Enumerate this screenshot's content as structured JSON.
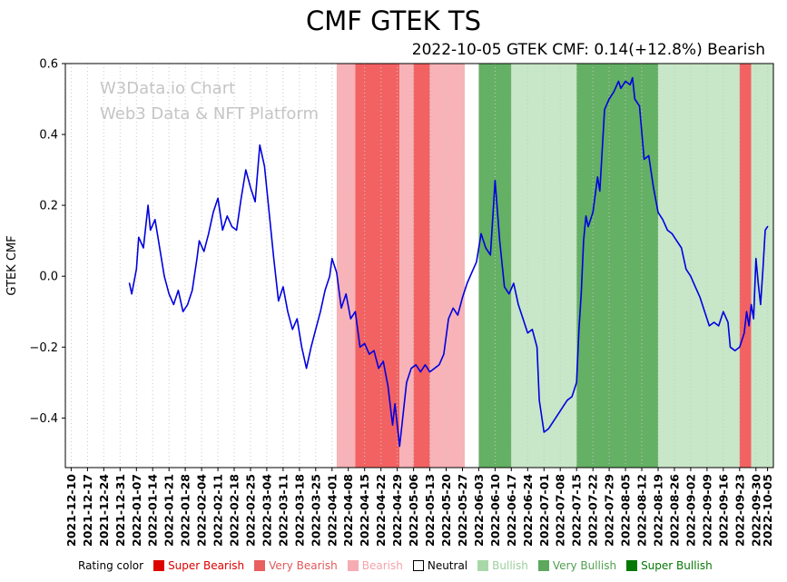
{
  "title": "CMF GTEK TS",
  "subtitle": "2022-10-05 GTEK CMF: 0.14(+12.8%) Bearish",
  "watermark": {
    "line1": "W3Data.io Chart",
    "line2": "Web3 Data & NFT Platform"
  },
  "legend": {
    "title": "Rating color",
    "items": [
      {
        "label": "Super Bearish",
        "color": "#dd0000",
        "border": "#dd0000",
        "text_color": "#dd0000"
      },
      {
        "label": "Very Bearish",
        "color": "#e95f5f",
        "border": "#e95f5f",
        "text_color": "#e05a5a"
      },
      {
        "label": "Bearish",
        "color": "#f5adb3",
        "border": "#f5adb3",
        "text_color": "#f2a3ab"
      },
      {
        "label": "Neutral",
        "color": "#ffffff",
        "border": "#000000",
        "text_color": "#000000"
      },
      {
        "label": "Bullish",
        "color": "#a8d8a8",
        "border": "#a8d8a8",
        "text_color": "#9ccf9c"
      },
      {
        "label": "Very Bullish",
        "color": "#5da85d",
        "border": "#5da85d",
        "text_color": "#4f9f4f"
      },
      {
        "label": "Super Bullish",
        "color": "#067806",
        "border": "#067806",
        "text_color": "#067806"
      }
    ]
  },
  "chart_data": {
    "type": "line",
    "title": "CMF GTEK TS",
    "xlabel": "",
    "ylabel": "GTEK CMF",
    "line_color": "#0000e0",
    "grid_color": "#c9c9c9",
    "grid": "vertical-dotted",
    "legend_position": "bottom",
    "ylim": [
      -0.54,
      0.6
    ],
    "xlim_days": [
      -2.5,
      301.5
    ],
    "yticks": [
      {
        "v": 0.6,
        "label": "0.6"
      },
      {
        "v": 0.4,
        "label": "0.4"
      },
      {
        "v": 0.2,
        "label": "0.2"
      },
      {
        "v": 0.0,
        "label": "0.0"
      },
      {
        "v": -0.2,
        "label": "−0.2"
      },
      {
        "v": -0.4,
        "label": "−0.4"
      }
    ],
    "x_tick_dates": [
      "2021-12-10",
      "2021-12-17",
      "2021-12-24",
      "2021-12-31",
      "2022-01-07",
      "2022-01-14",
      "2022-01-21",
      "2022-01-28",
      "2022-02-04",
      "2022-02-11",
      "2022-02-18",
      "2022-02-25",
      "2022-03-04",
      "2022-03-11",
      "2022-03-18",
      "2022-03-25",
      "2022-04-01",
      "2022-04-08",
      "2022-04-15",
      "2022-04-22",
      "2022-04-29",
      "2022-05-06",
      "2022-05-13",
      "2022-05-20",
      "2022-05-27",
      "2022-06-03",
      "2022-06-10",
      "2022-06-17",
      "2022-06-24",
      "2022-07-01",
      "2022-07-08",
      "2022-07-15",
      "2022-07-22",
      "2022-07-29",
      "2022-08-05",
      "2022-08-12",
      "2022-08-19",
      "2022-08-26",
      "2022-09-02",
      "2022-09-09",
      "2022-09-16",
      "2022-09-23",
      "2022-09-30",
      "2022-10-05"
    ],
    "x_tick_days": [
      0,
      7,
      14,
      21,
      28,
      35,
      42,
      49,
      56,
      63,
      70,
      77,
      84,
      91,
      98,
      105,
      112,
      119,
      126,
      133,
      140,
      147,
      154,
      161,
      168,
      175,
      182,
      189,
      196,
      203,
      210,
      217,
      224,
      231,
      238,
      245,
      252,
      259,
      266,
      273,
      280,
      287,
      294,
      299
    ],
    "rating_colors": {
      "super_bearish": "#ee1111",
      "very_bearish": "#f26262",
      "bearish": "#f7b3b8",
      "neutral": "#ffffff",
      "bullish": "#c8e6c8",
      "very_bullish": "#64b064",
      "super_bullish": "#0c7a0c"
    },
    "bands": [
      {
        "start": -2.5,
        "end": 114,
        "rating": "neutral"
      },
      {
        "start": 114,
        "end": 122,
        "rating": "bearish"
      },
      {
        "start": 122,
        "end": 141,
        "rating": "very_bearish"
      },
      {
        "start": 141,
        "end": 147,
        "rating": "bearish"
      },
      {
        "start": 147,
        "end": 154,
        "rating": "very_bearish"
      },
      {
        "start": 154,
        "end": 169,
        "rating": "bearish"
      },
      {
        "start": 169,
        "end": 175,
        "rating": "neutral"
      },
      {
        "start": 175,
        "end": 189,
        "rating": "very_bullish"
      },
      {
        "start": 189,
        "end": 217,
        "rating": "bullish"
      },
      {
        "start": 217,
        "end": 252,
        "rating": "very_bullish"
      },
      {
        "start": 252,
        "end": 287,
        "rating": "bullish"
      },
      {
        "start": 287,
        "end": 292,
        "rating": "very_bearish"
      },
      {
        "start": 292,
        "end": 301.5,
        "rating": "bullish"
      }
    ],
    "series": [
      {
        "name": "GTEK CMF",
        "points": [
          [
            25,
            -0.02
          ],
          [
            26,
            -0.05
          ],
          [
            28,
            0.02
          ],
          [
            29,
            0.11
          ],
          [
            31,
            0.08
          ],
          [
            33,
            0.2
          ],
          [
            34,
            0.13
          ],
          [
            36,
            0.16
          ],
          [
            38,
            0.08
          ],
          [
            40,
            0.0
          ],
          [
            42,
            -0.05
          ],
          [
            44,
            -0.08
          ],
          [
            46,
            -0.04
          ],
          [
            48,
            -0.1
          ],
          [
            50,
            -0.08
          ],
          [
            52,
            -0.04
          ],
          [
            54,
            0.05
          ],
          [
            55,
            0.1
          ],
          [
            57,
            0.07
          ],
          [
            59,
            0.12
          ],
          [
            61,
            0.18
          ],
          [
            63,
            0.22
          ],
          [
            65,
            0.13
          ],
          [
            67,
            0.17
          ],
          [
            69,
            0.14
          ],
          [
            71,
            0.13
          ],
          [
            73,
            0.22
          ],
          [
            75,
            0.3
          ],
          [
            77,
            0.25
          ],
          [
            79,
            0.21
          ],
          [
            81,
            0.37
          ],
          [
            83,
            0.31
          ],
          [
            85,
            0.18
          ],
          [
            87,
            0.05
          ],
          [
            89,
            -0.07
          ],
          [
            91,
            -0.03
          ],
          [
            93,
            -0.1
          ],
          [
            95,
            -0.15
          ],
          [
            97,
            -0.12
          ],
          [
            99,
            -0.2
          ],
          [
            101,
            -0.26
          ],
          [
            103,
            -0.2
          ],
          [
            105,
            -0.15
          ],
          [
            107,
            -0.1
          ],
          [
            109,
            -0.04
          ],
          [
            111,
            0.0
          ],
          [
            112,
            0.05
          ],
          [
            114,
            0.01
          ],
          [
            116,
            -0.09
          ],
          [
            118,
            -0.05
          ],
          [
            120,
            -0.12
          ],
          [
            122,
            -0.1
          ],
          [
            124,
            -0.2
          ],
          [
            126,
            -0.19
          ],
          [
            128,
            -0.22
          ],
          [
            130,
            -0.21
          ],
          [
            132,
            -0.26
          ],
          [
            134,
            -0.24
          ],
          [
            136,
            -0.31
          ],
          [
            138,
            -0.42
          ],
          [
            139,
            -0.36
          ],
          [
            141,
            -0.48
          ],
          [
            142,
            -0.42
          ],
          [
            144,
            -0.3
          ],
          [
            146,
            -0.26
          ],
          [
            148,
            -0.25
          ],
          [
            150,
            -0.27
          ],
          [
            152,
            -0.25
          ],
          [
            154,
            -0.27
          ],
          [
            156,
            -0.26
          ],
          [
            158,
            -0.25
          ],
          [
            160,
            -0.22
          ],
          [
            162,
            -0.12
          ],
          [
            164,
            -0.09
          ],
          [
            166,
            -0.11
          ],
          [
            168,
            -0.06
          ],
          [
            170,
            -0.02
          ],
          [
            172,
            0.01
          ],
          [
            174,
            0.04
          ],
          [
            176,
            0.12
          ],
          [
            178,
            0.08
          ],
          [
            180,
            0.06
          ],
          [
            182,
            0.27
          ],
          [
            184,
            0.1
          ],
          [
            186,
            -0.03
          ],
          [
            188,
            -0.05
          ],
          [
            190,
            -0.02
          ],
          [
            192,
            -0.08
          ],
          [
            194,
            -0.12
          ],
          [
            196,
            -0.16
          ],
          [
            198,
            -0.15
          ],
          [
            200,
            -0.2
          ],
          [
            201,
            -0.35
          ],
          [
            203,
            -0.44
          ],
          [
            205,
            -0.43
          ],
          [
            207,
            -0.41
          ],
          [
            209,
            -0.39
          ],
          [
            211,
            -0.37
          ],
          [
            213,
            -0.35
          ],
          [
            215,
            -0.34
          ],
          [
            217,
            -0.3
          ],
          [
            218,
            -0.15
          ],
          [
            219,
            -0.05
          ],
          [
            220,
            0.1
          ],
          [
            221,
            0.17
          ],
          [
            222,
            0.14
          ],
          [
            224,
            0.18
          ],
          [
            226,
            0.28
          ],
          [
            227,
            0.24
          ],
          [
            229,
            0.47
          ],
          [
            231,
            0.5
          ],
          [
            233,
            0.52
          ],
          [
            235,
            0.55
          ],
          [
            236,
            0.53
          ],
          [
            238,
            0.55
          ],
          [
            240,
            0.54
          ],
          [
            241,
            0.56
          ],
          [
            242,
            0.5
          ],
          [
            244,
            0.48
          ],
          [
            246,
            0.33
          ],
          [
            248,
            0.34
          ],
          [
            250,
            0.25
          ],
          [
            252,
            0.18
          ],
          [
            254,
            0.16
          ],
          [
            256,
            0.13
          ],
          [
            258,
            0.12
          ],
          [
            260,
            0.1
          ],
          [
            262,
            0.08
          ],
          [
            264,
            0.02
          ],
          [
            266,
            0.0
          ],
          [
            268,
            -0.03
          ],
          [
            270,
            -0.06
          ],
          [
            272,
            -0.1
          ],
          [
            274,
            -0.14
          ],
          [
            276,
            -0.13
          ],
          [
            278,
            -0.14
          ],
          [
            280,
            -0.1
          ],
          [
            282,
            -0.13
          ],
          [
            283,
            -0.2
          ],
          [
            285,
            -0.21
          ],
          [
            287,
            -0.2
          ],
          [
            289,
            -0.16
          ],
          [
            290,
            -0.1
          ],
          [
            291,
            -0.14
          ],
          [
            292,
            -0.08
          ],
          [
            293,
            -0.12
          ],
          [
            294,
            0.05
          ],
          [
            295,
            -0.02
          ],
          [
            296,
            -0.08
          ],
          [
            297,
            0.02
          ],
          [
            298,
            0.13
          ],
          [
            299,
            0.14
          ]
        ]
      }
    ]
  }
}
